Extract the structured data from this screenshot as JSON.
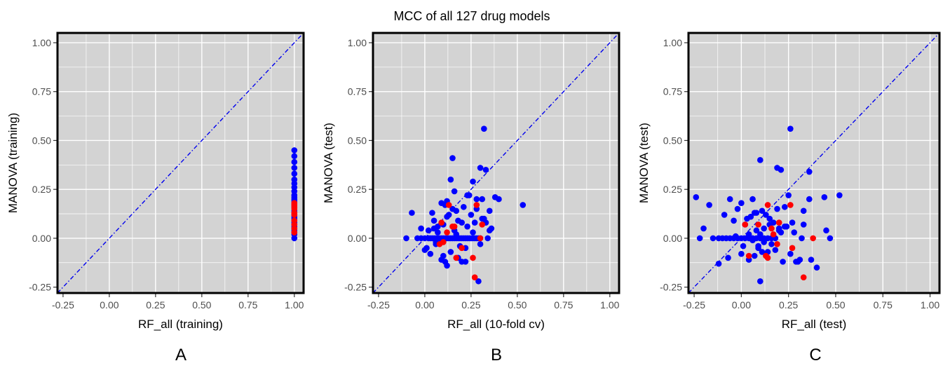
{
  "figure": {
    "title": "MCC of all 127 drug models"
  },
  "colors": {
    "panel_bg": "#d3d3d3",
    "grid": "#ffffff",
    "frame": "#000000",
    "diagonal": "#0000ee",
    "point_blue": "#0000ff",
    "point_red": "#ff0000"
  },
  "chart_data": [
    {
      "type": "scatter",
      "panel_label": "A",
      "xlabel": "RF_all (training)",
      "ylabel": "MANOVA (training)",
      "xlim": [
        -0.28,
        1.05
      ],
      "ylim": [
        -0.28,
        1.05
      ],
      "xticks": [
        "-0.25",
        "0.00",
        "0.25",
        "0.50",
        "0.75",
        "1.00"
      ],
      "yticks": [
        "-0.25",
        "0.00",
        "0.25",
        "0.50",
        "0.75",
        "1.00"
      ],
      "grid": true,
      "reference_line": "y = x (dot-dash)",
      "series": [
        {
          "color": "blue",
          "x": [
            1,
            1,
            1,
            1,
            1,
            1,
            1,
            1,
            1,
            1,
            1,
            1,
            1,
            1,
            1,
            1,
            1,
            1,
            1,
            1,
            1,
            1,
            1,
            1,
            1,
            1,
            1,
            1,
            1,
            1
          ],
          "y": [
            0.45,
            0.42,
            0.39,
            0.36,
            0.33,
            0.3,
            0.28,
            0.26,
            0.24,
            0.22,
            0.21,
            0.2,
            0.19,
            0.18,
            0.17,
            0.16,
            0.14,
            0.13,
            0.12,
            0.11,
            0.1,
            0.09,
            0.08,
            0.07,
            0.06,
            0.05,
            0.04,
            0.03,
            0.02,
            0.0
          ]
        },
        {
          "color": "red",
          "x": [
            1,
            1,
            1,
            1,
            1,
            1,
            1,
            1,
            1,
            1
          ],
          "y": [
            0.18,
            0.17,
            0.16,
            0.15,
            0.13,
            0.12,
            0.09,
            0.07,
            0.05,
            0.03
          ]
        }
      ]
    },
    {
      "type": "scatter",
      "panel_label": "B",
      "xlabel": "RF_all (10-fold cv)",
      "ylabel": "MANOVA (test)",
      "xlim": [
        -0.28,
        1.05
      ],
      "ylim": [
        -0.28,
        1.05
      ],
      "xticks": [
        "-0.25",
        "0.00",
        "0.25",
        "0.50",
        "0.75",
        "1.00"
      ],
      "yticks": [
        "-0.25",
        "0.00",
        "0.25",
        "0.50",
        "0.75",
        "1.00"
      ],
      "grid": true,
      "reference_line": "y = x (dot-dash)",
      "series": [
        {
          "color": "blue",
          "x": [
            -0.1,
            -0.04,
            -0.02,
            0.0,
            0.02,
            0.03,
            0.04,
            0.05,
            0.06,
            0.07,
            0.08,
            0.09,
            0.1,
            0.11,
            0.12,
            0.13,
            0.14,
            0.15,
            0.16,
            0.17,
            0.18,
            0.19,
            0.2,
            0.21,
            0.22,
            0.23,
            0.24,
            0.25,
            0.26,
            0.27,
            0.28,
            0.29,
            0.3,
            -0.07,
            0.32,
            0.15,
            0.3,
            0.14,
            0.38,
            0.4,
            0.53,
            0.33,
            0.23,
            0.26,
            0.35,
            0.36,
            0.29,
            0.12,
            0.11,
            0.18,
            0.2,
            0.22,
            0.02,
            0.05,
            0.07,
            0.1,
            0.27,
            0.31,
            0.13,
            0.17,
            0.21,
            0.09,
            0.28,
            0.24,
            0.16,
            0.08,
            0.06,
            0.0,
            0.03,
            0.19,
            0.35,
            0.31,
            0.04,
            0.15,
            0.11,
            0.25,
            0.07,
            0.32,
            0.01,
            0.14,
            0.18,
            0.12,
            0.23,
            0.26,
            0.1,
            -0.02,
            0.2,
            0.06,
            0.22,
            0.17,
            0.3,
            0.28,
            0.34,
            0.12,
            0.05,
            0.16,
            0.09,
            0.33
          ],
          "y": [
            0.0,
            0.0,
            0.0,
            0.0,
            0.0,
            0.0,
            0.0,
            0.0,
            0.0,
            0.0,
            0.0,
            0.0,
            0.0,
            0.0,
            0.0,
            0.0,
            0.0,
            0.0,
            0.0,
            0.0,
            0.0,
            0.0,
            0.0,
            0.0,
            0.0,
            0.0,
            0.0,
            0.0,
            0.0,
            0.0,
            0.0,
            0.0,
            0.0,
            0.13,
            0.56,
            0.41,
            0.36,
            0.3,
            0.21,
            0.2,
            0.17,
            0.35,
            0.22,
            0.29,
            0.14,
            0.05,
            -0.22,
            -0.14,
            -0.12,
            -0.1,
            -0.12,
            -0.12,
            0.04,
            0.05,
            0.06,
            0.07,
            0.08,
            0.1,
            0.12,
            0.14,
            0.16,
            0.18,
            0.2,
            0.22,
            0.24,
            -0.02,
            -0.03,
            -0.06,
            -0.08,
            -0.04,
            0.04,
            0.2,
            0.13,
            0.15,
            0.17,
            0.12,
            0.03,
            0.1,
            -0.05,
            -0.07,
            0.09,
            0.11,
            0.06,
            0.03,
            -0.09,
            0.05,
            0.08,
            -0.02,
            -0.05,
            0.02,
            -0.03,
            0.15,
            0.0,
            0.19,
            0.09,
            0.04,
            -0.11,
            0.08
          ]
        },
        {
          "color": "red",
          "x": [
            0.13,
            0.09,
            0.15,
            0.12,
            0.1,
            0.08,
            0.17,
            0.2,
            0.26,
            0.28,
            0.3,
            0.31,
            0.27,
            0.16
          ],
          "y": [
            0.17,
            0.08,
            0.06,
            0.03,
            -0.02,
            -0.03,
            -0.1,
            -0.05,
            -0.1,
            0.17,
            0.0,
            0.07,
            -0.2,
            0.06
          ]
        }
      ]
    },
    {
      "type": "scatter",
      "panel_label": "C",
      "xlabel": "RF_all (test)",
      "ylabel": "MANOVA (test)",
      "xlim": [
        -0.28,
        1.05
      ],
      "ylim": [
        -0.28,
        1.05
      ],
      "xticks": [
        "-0.25",
        "0.00",
        "0.25",
        "0.50",
        "0.75",
        "1.00"
      ],
      "yticks": [
        "-0.25",
        "0.00",
        "0.25",
        "0.50",
        "0.75",
        "1.00"
      ],
      "grid": true,
      "reference_line": "y = x (dot-dash)",
      "series": [
        {
          "color": "blue",
          "x": [
            -0.22,
            -0.15,
            -0.12,
            -0.1,
            -0.08,
            -0.06,
            -0.04,
            -0.02,
            0.0,
            0.02,
            0.04,
            0.06,
            0.08,
            0.1,
            0.12,
            0.14,
            0.16,
            0.18,
            -0.24,
            -0.2,
            -0.17,
            0.26,
            0.1,
            0.19,
            0.21,
            0.36,
            0.52,
            0.44,
            0.36,
            0.33,
            0.47,
            0.4,
            0.22,
            0.29,
            0.31,
            0.37,
            0.1,
            0.25,
            0.23,
            0.06,
            0.0,
            -0.06,
            -0.09,
            -0.02,
            0.03,
            0.05,
            0.07,
            0.11,
            0.13,
            0.15,
            0.17,
            0.2,
            0.24,
            0.28,
            0.32,
            0.08,
            0.02,
            -0.04,
            0.12,
            0.16,
            0.09,
            0.01,
            0.18,
            0.26,
            0.14,
            0.07,
            -0.12,
            -0.07,
            0.04,
            0.3,
            0.1,
            0.2,
            0.33,
            0.04,
            0.15,
            0.45,
            0.12,
            0.09,
            0.23,
            0.06,
            0.27,
            0.11,
            0.0,
            0.21,
            -0.03,
            0.08,
            0.19
          ],
          "y": [
            0.0,
            0.0,
            0.0,
            0.0,
            0.0,
            0.0,
            0.0,
            0.0,
            0.0,
            0.0,
            0.0,
            0.0,
            0.0,
            0.0,
            0.0,
            0.0,
            0.0,
            0.0,
            0.21,
            0.05,
            0.17,
            0.56,
            0.4,
            0.36,
            0.35,
            0.34,
            0.22,
            0.21,
            0.2,
            0.14,
            0.0,
            -0.15,
            -0.12,
            -0.12,
            -0.11,
            -0.11,
            -0.22,
            0.22,
            0.16,
            0.2,
            0.18,
            0.2,
            0.12,
            0.15,
            0.1,
            0.11,
            0.13,
            0.14,
            0.12,
            0.1,
            0.08,
            0.05,
            0.06,
            0.03,
            0.0,
            0.04,
            0.07,
            0.09,
            -0.02,
            -0.03,
            -0.05,
            -0.04,
            -0.06,
            -0.08,
            -0.07,
            -0.09,
            -0.13,
            -0.1,
            -0.11,
            -0.12,
            0.02,
            0.04,
            0.07,
            0.02,
            0.07,
            0.04,
            0.05,
            -0.04,
            0.06,
            -0.01,
            0.08,
            -0.07,
            -0.08,
            0.03,
            0.01,
            0.13,
            0.15
          ]
        },
        {
          "color": "red",
          "x": [
            0.14,
            0.02,
            0.09,
            0.17,
            0.2,
            0.27,
            0.26,
            0.04,
            0.13,
            0.14,
            0.16,
            0.38,
            0.33,
            0.19
          ],
          "y": [
            0.17,
            0.07,
            0.07,
            0.02,
            0.08,
            -0.05,
            0.17,
            -0.09,
            -0.09,
            -0.1,
            0.05,
            0.0,
            -0.2,
            -0.03
          ]
        }
      ]
    }
  ]
}
